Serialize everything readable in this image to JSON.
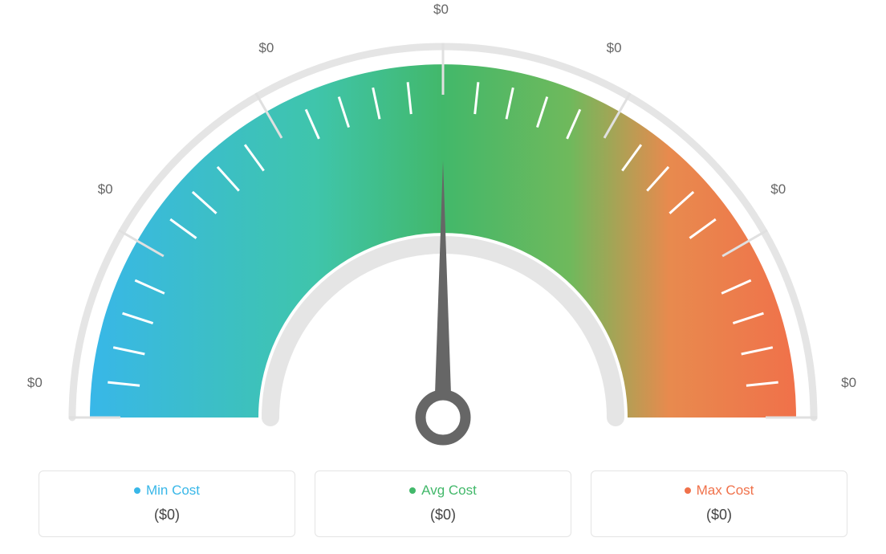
{
  "gauge": {
    "type": "gauge",
    "labels": [
      "$0",
      "$0",
      "$0",
      "$0",
      "$0",
      "$0",
      "$0"
    ],
    "label_positions_deg": [
      175,
      145,
      115,
      90,
      65,
      35,
      5
    ],
    "label_fontsize": 17,
    "label_color": "#666666",
    "color_start": "#38b7e8",
    "color_mid": "#42b86a",
    "color_end": "#f0714a",
    "outer_ring_color": "#e5e5e5",
    "inner_ring_color": "#e5e5e5",
    "tick_color_major": "#e0e0e0",
    "tick_color_minor": "#ffffff",
    "needle_color": "#666666",
    "background_color": "#ffffff",
    "outer_radius": 440,
    "inner_radius": 230,
    "ring_radius": 462,
    "ring_width": 9,
    "inner_ring_radius": 226,
    "inner_ring_width": 22,
    "needle_angle_deg": 90,
    "needle_length": 320,
    "major_tick_every": 5,
    "minor_ticks": 4,
    "tick_count": 30
  },
  "legend": {
    "min": {
      "label": "Min Cost",
      "value": "($0)",
      "color": "#38b7e8"
    },
    "avg": {
      "label": "Avg Cost",
      "value": "($0)",
      "color": "#42b86a"
    },
    "max": {
      "label": "Max Cost",
      "value": "($0)",
      "color": "#f0714a"
    }
  }
}
